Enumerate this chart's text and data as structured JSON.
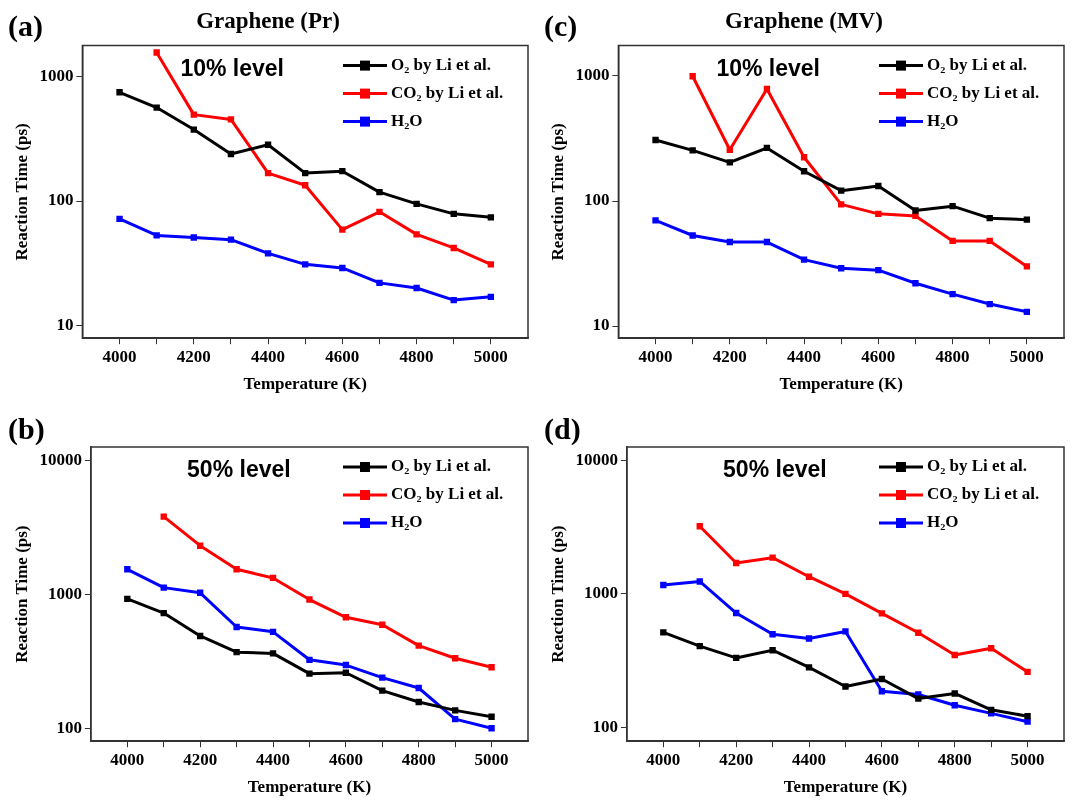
{
  "chart_data": [
    {
      "type": "line",
      "title": "Graphene (Pr)",
      "xlabel": "Temperature (K)",
      "ylabel": "Reaction Time (ps)",
      "annotations": [
        "(a)",
        "10% level"
      ],
      "log": "y",
      "marker": "square",
      "legend": "top right",
      "x": [
        4000,
        4100,
        4200,
        4300,
        4400,
        4500,
        4600,
        4700,
        4800,
        4900,
        5000
      ],
      "xlim": [
        3900,
        5100
      ],
      "xticks": [
        4000,
        {
          "value": 4100,
          "label": null
        },
        4200,
        {
          "value": 4300,
          "label": null
        },
        4400,
        {
          "value": 4500,
          "label": null
        },
        4600,
        {
          "value": 4700,
          "label": null
        },
        4800,
        {
          "value": 4900,
          "label": null
        },
        5000
      ],
      "ylim": [
        7.9,
        1780
      ],
      "yticks": [
        10,
        100,
        1000
      ],
      "series": [
        {
          "name": "O₂ by Li et al.",
          "color": "#000000",
          "values": [
            750,
            565,
            376,
            239,
            284,
            168,
            174,
            118,
            95,
            79,
            74
          ]
        },
        {
          "name": "CO₂ by Li et al.",
          "color": "#ff0000",
          "values": [
            null,
            1565,
            496,
            454,
            168,
            134,
            59,
            82,
            54,
            42,
            31
          ]
        },
        {
          "name": "H₂O",
          "color": "#0000ff",
          "values": [
            72,
            53,
            51,
            49,
            38,
            31,
            29,
            22,
            20,
            16,
            17
          ]
        }
      ]
    },
    {
      "type": "line",
      "title": "Graphene (MV)",
      "xlabel": "Temperature (K)",
      "ylabel": "Reaction Time (ps)",
      "annotations": [
        "(c)",
        "10% level"
      ],
      "log": "y",
      "marker": "square",
      "legend": "top right",
      "x": [
        4000,
        4100,
        4200,
        4300,
        4400,
        4500,
        4600,
        4700,
        4800,
        4900,
        5000
      ],
      "xlim": [
        3900,
        5100
      ],
      "xticks": [
        4000,
        {
          "value": 4100,
          "label": null
        },
        4200,
        {
          "value": 4300,
          "label": null
        },
        4400,
        {
          "value": 4500,
          "label": null
        },
        4600,
        {
          "value": 4700,
          "label": null
        },
        4800,
        {
          "value": 4900,
          "label": null
        },
        5000
      ],
      "ylim": [
        8,
        1750
      ],
      "yticks": [
        10,
        100,
        1000
      ],
      "series": [
        {
          "name": "O₂ by Li et al.",
          "color": "#000000",
          "values": [
            308,
            254,
            204,
            266,
            173,
            121,
            132,
            84,
            91,
            73,
            71
          ]
        },
        {
          "name": "CO₂ by Li et al.",
          "color": "#ff0000",
          "values": [
            null,
            995,
            257,
            787,
            224,
            94,
            79,
            76,
            48,
            48,
            30
          ]
        },
        {
          "name": "H₂O",
          "color": "#0000ff",
          "values": [
            70,
            53,
            47,
            47,
            34,
            29,
            28,
            22,
            18,
            15,
            13
          ]
        }
      ]
    },
    {
      "type": "line",
      "xlabel": "Temperature (K)",
      "ylabel": "Reaction Time (ps)",
      "annotations": [
        "(b)",
        "50% level"
      ],
      "log": "y",
      "marker": "square",
      "legend": "top right",
      "x": [
        4000,
        4100,
        4200,
        4300,
        4400,
        4500,
        4600,
        4700,
        4800,
        4900,
        5000
      ],
      "xlim": [
        3900,
        5100
      ],
      "xticks": [
        4000,
        {
          "value": 4100,
          "label": null
        },
        4200,
        {
          "value": 4300,
          "label": null
        },
        4400,
        {
          "value": 4500,
          "label": null
        },
        4600,
        {
          "value": 4700,
          "label": null
        },
        4800,
        {
          "value": 4900,
          "label": null
        },
        5000
      ],
      "ylim": [
        80,
        12700
      ],
      "yticks": [
        100,
        1000,
        10000
      ],
      "series": [
        {
          "name": "O₂ by Li et al.",
          "color": "#000000",
          "values": [
            928,
            727,
            490,
            371,
            363,
            256,
            260,
            191,
            157,
            136,
            122
          ]
        },
        {
          "name": "CO₂ by Li et al.",
          "color": "#ff0000",
          "values": [
            null,
            3825,
            2320,
            1545,
            1332,
            918,
            676,
            595,
            415,
            334,
            286
          ]
        },
        {
          "name": "H₂O",
          "color": "#0000ff",
          "values": [
            1545,
            1127,
            1031,
            572,
            526,
            325,
            297,
            239,
            200,
            117,
            100
          ]
        }
      ]
    },
    {
      "type": "line",
      "xlabel": "Temperature (K)",
      "ylabel": "Reaction Time (ps)",
      "annotations": [
        "(d)",
        "50% level"
      ],
      "log": "y",
      "marker": "square",
      "legend": "top right",
      "x": [
        4000,
        4100,
        4200,
        4300,
        4400,
        4500,
        4600,
        4700,
        4800,
        4900,
        5000
      ],
      "xlim": [
        3900,
        5100
      ],
      "xticks": [
        4000,
        {
          "value": 4100,
          "label": null
        },
        4200,
        {
          "value": 4300,
          "label": null
        },
        4400,
        {
          "value": 4500,
          "label": null
        },
        4600,
        {
          "value": 4700,
          "label": null
        },
        4800,
        {
          "value": 4900,
          "label": null
        },
        5000
      ],
      "ylim": [
        78.5,
        12660
      ],
      "yticks": [
        100,
        1000,
        10000
      ],
      "series": [
        {
          "name": "O₂ by Li et al.",
          "color": "#000000",
          "values": [
            514,
            406,
            331,
            378,
            281,
            202,
            230,
            164,
            179,
            135,
            121
          ]
        },
        {
          "name": "CO₂ by Li et al.",
          "color": "#ff0000",
          "values": [
            null,
            3222,
            1705,
            1871,
            1346,
            1000,
            715,
            511,
            348,
            391,
            260
          ]
        },
        {
          "name": "H₂O",
          "color": "#0000ff",
          "values": [
            1166,
            1240,
            719,
            498,
            463,
            523,
            186,
            176,
            146,
            127,
            110
          ]
        }
      ]
    }
  ]
}
